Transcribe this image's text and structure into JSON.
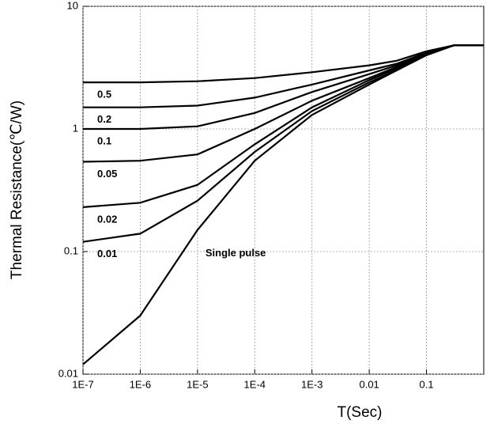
{
  "chart_data": {
    "type": "line",
    "x_label": "T(Sec)",
    "y_label": "Thermal Resistance(℃/W)",
    "x": [
      1e-07,
      1e-06,
      1e-05,
      0.0001,
      0.001,
      0.01,
      0.03,
      0.1,
      0.3,
      1
    ],
    "series": [
      {
        "name": "0.5",
        "color": "#000000",
        "values": [
          2.4,
          2.4,
          2.45,
          2.6,
          2.9,
          3.3,
          3.6,
          4.3,
          4.8,
          4.8
        ]
      },
      {
        "name": "0.2",
        "color": "#000000",
        "values": [
          1.5,
          1.5,
          1.55,
          1.8,
          2.3,
          3.0,
          3.4,
          4.2,
          4.8,
          4.8
        ]
      },
      {
        "name": "0.1",
        "color": "#000000",
        "values": [
          1.0,
          1.0,
          1.05,
          1.35,
          2.0,
          2.8,
          3.3,
          4.2,
          4.8,
          4.8
        ]
      },
      {
        "name": "0.05",
        "color": "#000000",
        "values": [
          0.54,
          0.55,
          0.62,
          1.0,
          1.7,
          2.6,
          3.2,
          4.1,
          4.8,
          4.8
        ]
      },
      {
        "name": "0.02",
        "color": "#000000",
        "values": [
          0.23,
          0.25,
          0.35,
          0.75,
          1.5,
          2.5,
          3.1,
          4.1,
          4.8,
          4.8
        ]
      },
      {
        "name": "0.01",
        "color": "#000000",
        "values": [
          0.12,
          0.14,
          0.26,
          0.65,
          1.4,
          2.4,
          3.0,
          4.0,
          4.8,
          4.8
        ]
      },
      {
        "name": "Single pulse",
        "color": "#000000",
        "values": [
          0.012,
          0.03,
          0.15,
          0.55,
          1.3,
          2.3,
          3.0,
          4.0,
          4.8,
          4.8
        ]
      }
    ],
    "xlim": [
      1e-07,
      1
    ],
    "ylim": [
      0.01,
      10
    ],
    "xticks": [
      {
        "value": 1e-07,
        "label": "1E-7"
      },
      {
        "value": 1e-06,
        "label": "1E-6"
      },
      {
        "value": 1e-05,
        "label": "1E-5"
      },
      {
        "value": 0.0001,
        "label": "1E-4"
      },
      {
        "value": 0.001,
        "label": "1E-3"
      },
      0.01,
      0.1
    ],
    "yticks": [
      0.01,
      0.1,
      1,
      10
    ],
    "x_log": true,
    "y_log": true,
    "grid": true
  }
}
